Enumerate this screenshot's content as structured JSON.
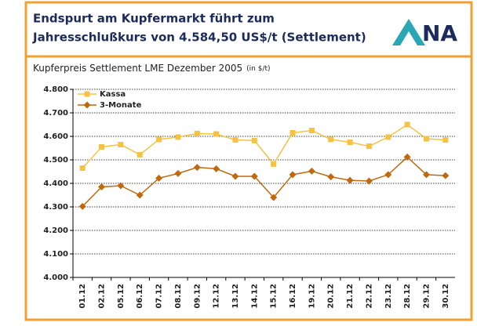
{
  "chart_data": {
    "type": "line",
    "title": [
      "Endspurt am Kupfermarkt führt zum",
      "Jahresschlußkurs von 4.584,50 US$/t (Settlement)"
    ],
    "logo": "NA",
    "subtitle": "Kupferpreis Settlement LME Dezember 2005",
    "unit": "(in $/t)",
    "categories": [
      "01.12",
      "02.12",
      "05.12",
      "06.12",
      "07.12",
      "08.12",
      "09.12",
      "12.12",
      "13.12",
      "14.12",
      "15.12",
      "16.12",
      "19.12",
      "20.12",
      "21.12",
      "22.12",
      "23.12",
      "28.12",
      "29.12",
      "30.12"
    ],
    "series": [
      {
        "name": "Kassa",
        "color": "#f5c242",
        "marker": "square",
        "values": [
          4465,
          4555,
          4565,
          4522,
          4587,
          4597,
          4612,
          4610,
          4585,
          4582,
          4482,
          4615,
          4625,
          4587,
          4575,
          4558,
          4597,
          4650,
          4590,
          4584.5
        ]
      },
      {
        "name": "3-Monate",
        "color": "#c0690f",
        "marker": "diamond",
        "values": [
          4302,
          4385,
          4390,
          4350,
          4422,
          4442,
          4468,
          4462,
          4430,
          4430,
          4340,
          4437,
          4452,
          4428,
          4413,
          4410,
          4437,
          4512,
          4437,
          4433
        ]
      }
    ],
    "ylim": [
      4000,
      4800
    ],
    "yticks": [
      {
        "value": 4000,
        "label": "4.000"
      },
      {
        "value": 4100,
        "label": "4.100"
      },
      {
        "value": 4200,
        "label": "4.200"
      },
      {
        "value": 4300,
        "label": "4.300"
      },
      {
        "value": 4400,
        "label": "4.400"
      },
      {
        "value": 4500,
        "label": "4.500"
      },
      {
        "value": 4600,
        "label": "4.600"
      },
      {
        "value": 4700,
        "label": "4.700"
      },
      {
        "value": 4800,
        "label": "4.800"
      }
    ],
    "grid": true,
    "legend": "top-left"
  }
}
